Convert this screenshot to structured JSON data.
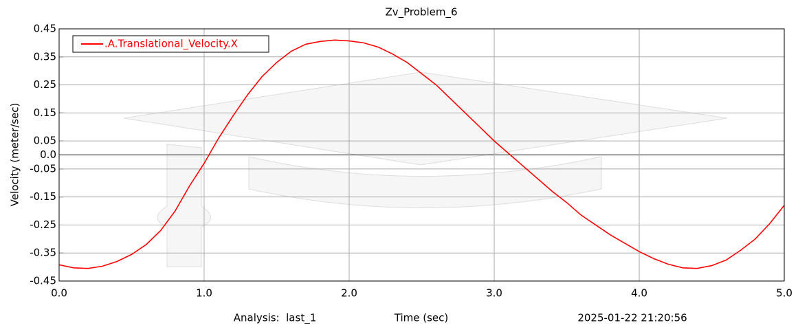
{
  "chart_data": {
    "type": "line",
    "title": "Zv_Problem_6",
    "x_label": "Time (sec)",
    "y_label": "Velocity (meter/sec)",
    "footer_left": "Analysis:  last_1",
    "footer_right": "2025-01-22 21:20:56",
    "x": [
      0,
      0.1,
      0.2,
      0.3,
      0.4,
      0.5,
      0.6,
      0.7,
      0.8,
      0.9,
      1.0,
      1.1,
      1.2,
      1.3,
      1.4,
      1.5,
      1.6,
      1.7,
      1.8,
      1.9,
      2.0,
      2.1,
      2.2,
      2.3,
      2.4,
      2.5,
      2.6,
      2.7,
      2.8,
      2.9,
      3.0,
      3.1,
      3.2,
      3.3,
      3.4,
      3.5,
      3.6,
      3.7,
      3.8,
      3.9,
      4.0,
      4.1,
      4.2,
      4.3,
      4.4,
      4.5,
      4.6,
      4.7,
      4.8,
      4.9,
      5.0
    ],
    "series": [
      {
        "name": ".A.Translational_Velocity.X",
        "color": "#ff0000",
        "values": [
          -0.392,
          -0.403,
          -0.405,
          -0.397,
          -0.38,
          -0.355,
          -0.32,
          -0.27,
          -0.2,
          -0.11,
          -0.03,
          0.06,
          0.14,
          0.215,
          0.28,
          0.33,
          0.37,
          0.395,
          0.405,
          0.41,
          0.407,
          0.4,
          0.385,
          0.36,
          0.33,
          0.29,
          0.25,
          0.2,
          0.15,
          0.1,
          0.05,
          0.005,
          -0.04,
          -0.085,
          -0.13,
          -0.17,
          -0.215,
          -0.25,
          -0.285,
          -0.315,
          -0.345,
          -0.37,
          -0.39,
          -0.403,
          -0.405,
          -0.395,
          -0.375,
          -0.34,
          -0.3,
          -0.245,
          -0.18
        ]
      }
    ],
    "xlim": [
      0,
      5
    ],
    "ylim": [
      -0.45,
      0.45
    ],
    "xticks": [
      {
        "value": 0,
        "label": "0.0"
      },
      {
        "value": 1,
        "label": "1.0"
      },
      {
        "value": 2,
        "label": "2.0"
      },
      {
        "value": 3,
        "label": "3.0"
      },
      {
        "value": 4,
        "label": "4.0"
      },
      {
        "value": 5,
        "label": "5.0"
      }
    ],
    "yticks": [
      0.45,
      0.35,
      0.25,
      0.15,
      0.05,
      {
        "value": 0,
        "label": "0.0"
      },
      -0.05,
      -0.15,
      -0.25,
      -0.35,
      -0.45
    ],
    "grid": true,
    "legend": "upper left"
  }
}
